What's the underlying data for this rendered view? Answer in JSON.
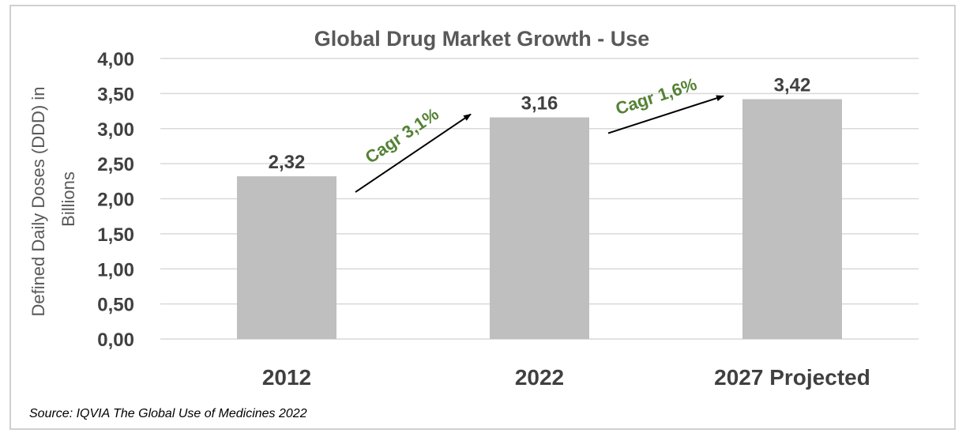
{
  "chart_data": {
    "type": "bar",
    "title": "Global Drug Market Growth - Use",
    "ylabel_line1": "Defined Daily Doses (DDD) in",
    "ylabel_line2": "Billions",
    "xlabel": "",
    "categories": [
      "2012",
      "2022",
      "2027 Projected"
    ],
    "values": [
      2.32,
      3.16,
      3.42
    ],
    "data_labels": [
      "2,32",
      "3,16",
      "3,42"
    ],
    "yticks": [
      0,
      0.5,
      1,
      1.5,
      2,
      2.5,
      3,
      3.5,
      4
    ],
    "ytick_labels": [
      "0,00",
      "0,50",
      "1,00",
      "1,50",
      "2,00",
      "2,50",
      "3,00",
      "3,50",
      "4,00"
    ],
    "ylim": [
      0,
      4
    ],
    "grid": true,
    "legend": "none",
    "bar_color": "#bfbfbf",
    "annotations": [
      {
        "text": "Cagr 3,1%",
        "from_category": "2012",
        "to_category": "2022"
      },
      {
        "text": "Cagr 1,6%",
        "from_category": "2022",
        "to_category": "2027 Projected"
      }
    ],
    "annotation_color": "#548235"
  },
  "source": "Source: IQVIA The Global Use of Medicines 2022"
}
